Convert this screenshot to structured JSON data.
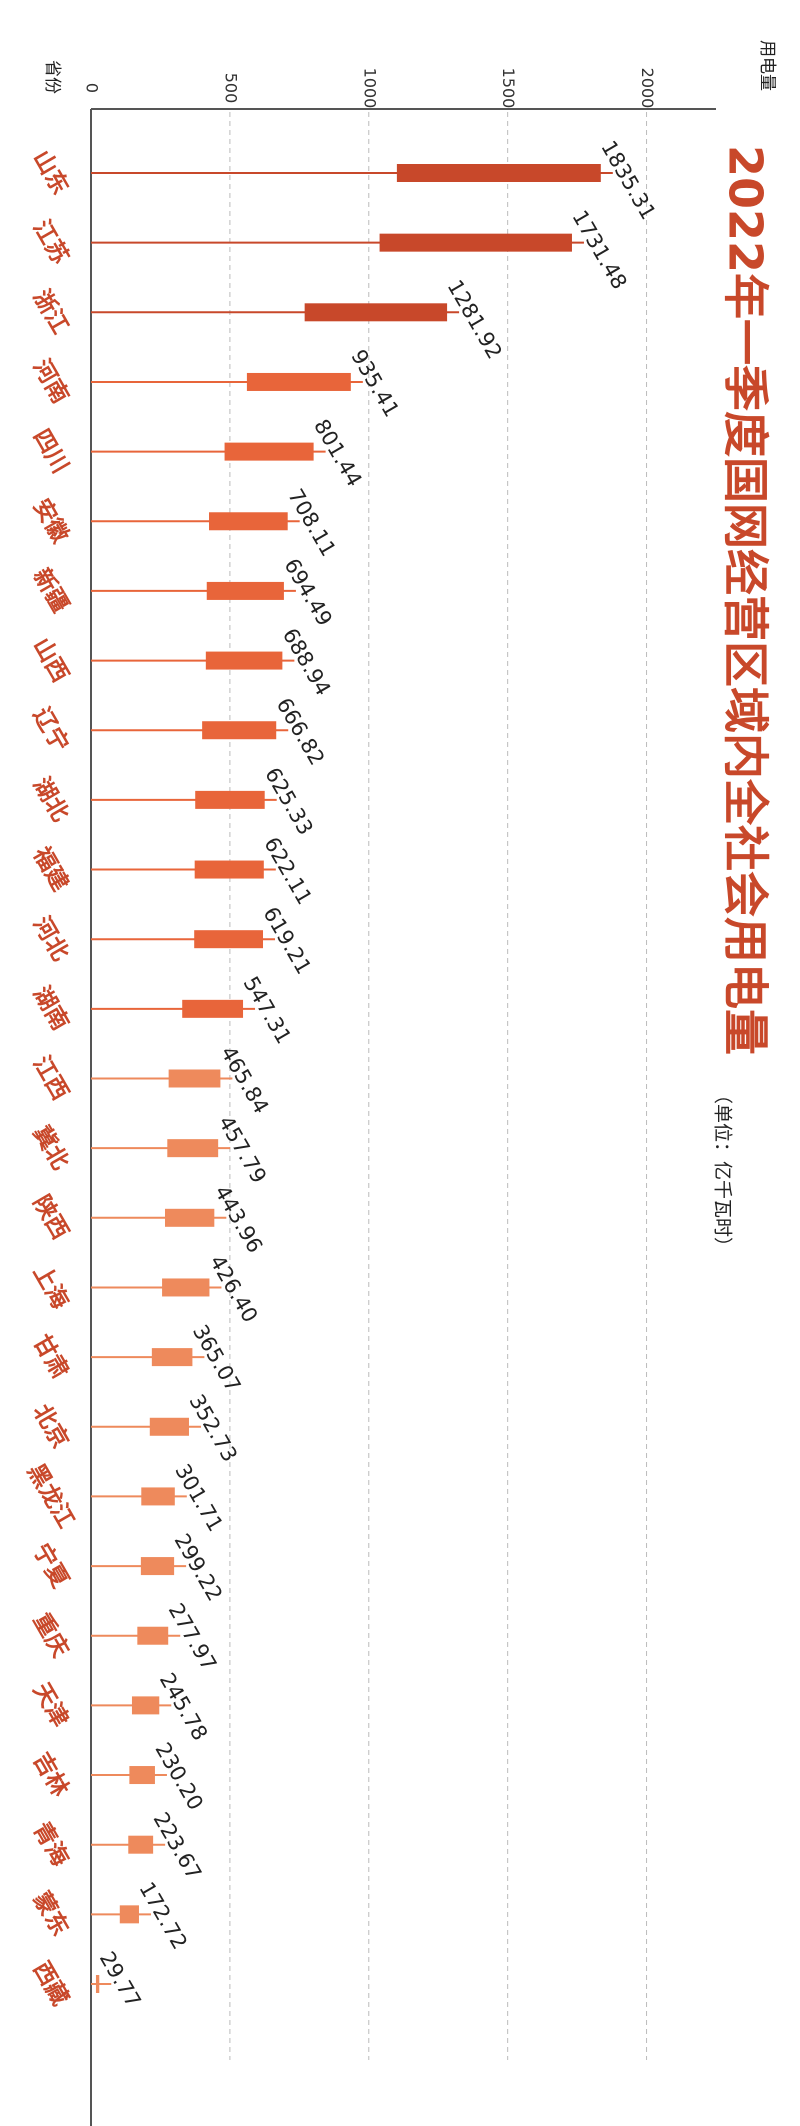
{
  "chart_data": {
    "type": "bar",
    "title": "2022年一季度国网经营区域内全社会用电量",
    "subtitle": "（单位：亿千瓦时）",
    "x_label": "省份",
    "y_label": "用电量",
    "categories": [
      "山东",
      "江苏",
      "浙江",
      "河南",
      "四川",
      "安徽",
      "新疆",
      "山西",
      "辽宁",
      "湖北",
      "福建",
      "河北",
      "湖南",
      "江西",
      "冀北",
      "陕西",
      "上海",
      "甘肃",
      "北京",
      "黑龙江",
      "宁夏",
      "重庆",
      "天津",
      "吉林",
      "青海",
      "蒙东",
      "西藏"
    ],
    "values": [
      1835.31,
      1731.48,
      1281.92,
      935.41,
      801.44,
      708.11,
      694.49,
      688.94,
      666.82,
      625.33,
      622.11,
      619.21,
      547.31,
      465.84,
      457.79,
      443.96,
      426.4,
      365.07,
      352.73,
      301.71,
      299.22,
      277.97,
      245.78,
      230.2,
      223.67,
      172.72,
      29.77
    ],
    "value_labels": [
      "1835.31",
      "1731.48",
      "1281.92",
      "935.41",
      "801.44",
      "708.11",
      "694.49",
      "688.94",
      "666.82",
      "625.33",
      "622.11",
      "619.21",
      "547.31",
      "465.84",
      "457.79",
      "443.96",
      "426.40",
      "365.07",
      "352.73",
      "301.71",
      "299.22",
      "277.97",
      "245.78",
      "230.20",
      "223.67",
      "172.72",
      "29.77"
    ],
    "colors": [
      "#c8482a",
      "#c8482a",
      "#c8482a",
      "#e8653a",
      "#e8653a",
      "#e8653a",
      "#e8653a",
      "#e8653a",
      "#e8653a",
      "#e8653a",
      "#e8653a",
      "#e8653a",
      "#e8653a",
      "#ee8a5c",
      "#ee8a5c",
      "#ee8a5c",
      "#ee8a5c",
      "#ee8a5c",
      "#ee8a5c",
      "#ee8a5c",
      "#ee8a5c",
      "#ee8a5c",
      "#ee8a5c",
      "#ee8a5c",
      "#ee8a5c",
      "#ee8a5c",
      "#ee8a5c"
    ],
    "ylim": [
      0,
      2250
    ],
    "yticks": [
      0,
      500,
      1000,
      1500,
      2000
    ],
    "grid": true
  }
}
